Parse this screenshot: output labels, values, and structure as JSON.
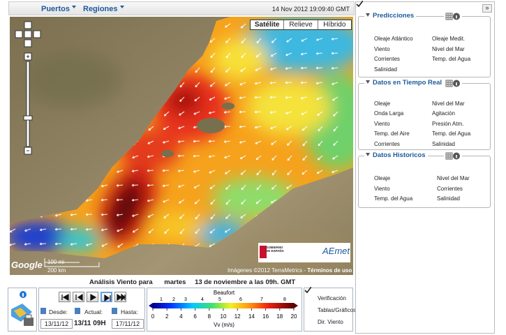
{
  "top_bar": {
    "menus": [
      "Puertos",
      "Regiones"
    ],
    "timestamp": "14 Nov 2012 19:09:40 GMT"
  },
  "map": {
    "map_types": [
      "Satélite",
      "Relieve",
      "Híbrido"
    ],
    "scale": [
      "100 mi",
      "200 km"
    ],
    "attribution": "Imágenes ©2012 TerraMetrics - ",
    "terms": "Términos de uso",
    "google": "Google",
    "logo_gov": "GOBIERNO DE ESPAÑA",
    "logo_aemet": "AEmet"
  },
  "analysis_title": {
    "prefix": "Análisis Viento para",
    "day": "martes",
    "date": "13 de noviembre a las 09h. GMT"
  },
  "time_controls": {
    "desde_label": "Desde:",
    "actual_label": "Actual:",
    "hasta_label": "Hasta:",
    "desde": "13/11/12",
    "actual": "13/11 09H",
    "hasta": "17/11/12"
  },
  "legend": {
    "title": "Beaufort",
    "beaufort_ticks": [
      1,
      2,
      3,
      4,
      5,
      6,
      7,
      8
    ],
    "ticks": [
      0,
      2,
      4,
      6,
      8,
      10,
      12,
      14,
      16,
      18,
      20
    ],
    "unit": "Vv (m/s)"
  },
  "options": [
    {
      "label": "Verificación",
      "checked": false
    },
    {
      "label": "Tablas/Gráficos",
      "checked": false
    },
    {
      "label": "Dir. Viento",
      "checked": true
    }
  ],
  "side_panel": {
    "collapse": "»",
    "groups": [
      {
        "title": "Predicciones",
        "items": [
          {
            "label": "Oleaje Atlántico",
            "checked": false
          },
          {
            "label": "Oleaje Medit.",
            "checked": false
          },
          {
            "label": "Viento",
            "checked": true
          },
          {
            "label": "Nivel del Mar",
            "checked": false
          },
          {
            "label": "Corrientes",
            "checked": false
          },
          {
            "label": "Temp. del Agua",
            "checked": false
          },
          {
            "label": "Salinidad",
            "checked": false
          }
        ]
      },
      {
        "title": "Datos en Tiempo Real",
        "items": [
          {
            "label": "Oleaje",
            "checked": false
          },
          {
            "label": "Nivel del Mar",
            "checked": false
          },
          {
            "label": "Onda Larga",
            "checked": false
          },
          {
            "label": "Agitación",
            "checked": false
          },
          {
            "label": "Viento",
            "checked": false
          },
          {
            "label": "Presión Atm.",
            "checked": false
          },
          {
            "label": "Temp. del Aire",
            "checked": false
          },
          {
            "label": "Temp. del Agua",
            "checked": false
          },
          {
            "label": "Corrientes",
            "checked": false
          },
          {
            "label": "Salinidad",
            "checked": false
          }
        ]
      },
      {
        "title": "Datos Historicos",
        "items": [
          {
            "label": "Oleaje",
            "checked": false
          },
          {
            "label": "Nivel del Mar",
            "checked": false
          },
          {
            "label": "Viento",
            "checked": false
          },
          {
            "label": "Corrientes",
            "checked": false
          },
          {
            "label": "Temp. del Agua",
            "checked": false
          },
          {
            "label": "Salinidad",
            "checked": false
          }
        ]
      }
    ]
  }
}
